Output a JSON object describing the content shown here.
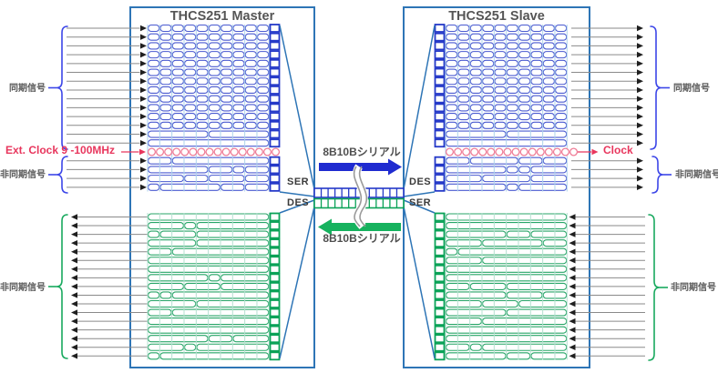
{
  "master": {
    "title": "THCS251 Master",
    "ser": "SER",
    "des": "DES"
  },
  "slave": {
    "title": "THCS251 Slave",
    "des": "DES",
    "ser": "SER"
  },
  "left": {
    "sync": "同期信号",
    "ext_clock": "Ext. Clock 9 -100MHz",
    "async_in": "非同期信号",
    "async_out": "非同期信号"
  },
  "right": {
    "sync": "同期信号",
    "clock": "Clock",
    "async_out": "非同期信号",
    "async_in": "非同期信号"
  },
  "serial": {
    "forward": "8B10Bシリアル",
    "backward": "8B10Bシリアル"
  },
  "counts": {
    "sync_rows": 14,
    "clock_rows": 1,
    "async_in_rows": 4,
    "async_out_rows": 17,
    "grid_columns": 10,
    "serial_cells": 13,
    "clock_circles": 16
  },
  "colors": {
    "box_border": "#2e75b6",
    "pill_blue": "#4a5ad0",
    "strong_blue": "#2438c8",
    "pill_green": "#27a567",
    "strong_green": "#0aa257",
    "grid_blue": "#aed3ec",
    "grid_green": "#b5e0d0",
    "clock_pink": "#ef7d97",
    "red": "#e8365d",
    "line_gray": "#8a8a8a",
    "arrowhead": "#1f1f1f",
    "arrow_blue": "#1f2bd0",
    "arrow_green": "#16b25e",
    "brace_blue": "#3c46e8",
    "brace_green": "#18a95e",
    "squiggle": "#9a9a9a",
    "text_gray": "#595959"
  }
}
